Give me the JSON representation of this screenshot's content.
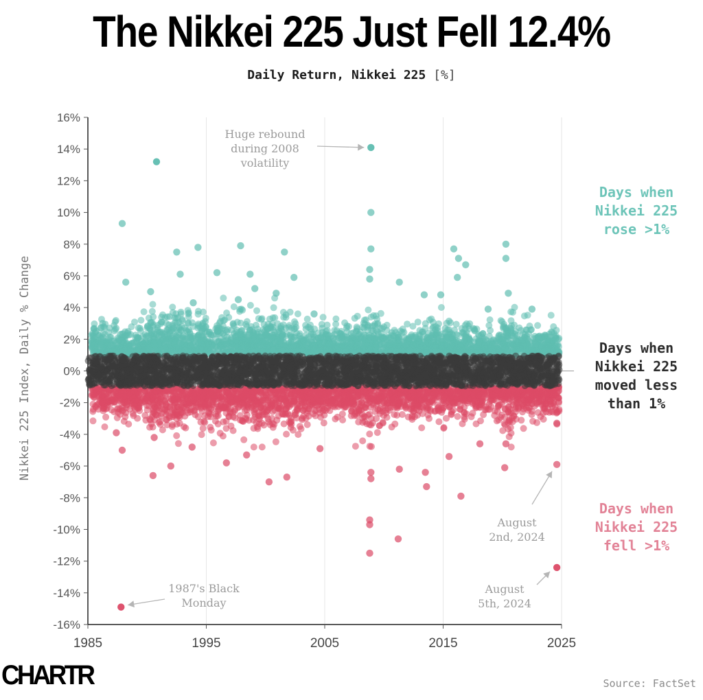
{
  "title": "The Nikkei 225 Just Fell 12.4%",
  "subtitle": "Daily Return, Nikkei 225",
  "subtitle_unit": "[%]",
  "legend": {
    "rose": [
      "Days when",
      "Nikkei 225",
      "rose >1%"
    ],
    "flat": [
      "Days when",
      "Nikkei 225",
      "moved less",
      "than 1%"
    ],
    "fell": [
      "Days when",
      "Nikkei 225",
      "fell >1%"
    ]
  },
  "logo": "CHARTR",
  "source": "Source: FactSet",
  "colors": {
    "rose": "#5fbdb0",
    "flat": "#3a3a3a",
    "fell": "#dc4a66",
    "annotation": "#9a9a9a",
    "grid": "#e6e6e6"
  },
  "chart_data": {
    "type": "scatter",
    "xlabel": "",
    "ylabel": "Nikkei 225 Index, Daily % Change",
    "x_ticks": [
      "1985",
      "1995",
      "2005",
      "2015",
      "2025"
    ],
    "y_ticks": [
      "16%",
      "14%",
      "12%",
      "10%",
      "8%",
      "6%",
      "4%",
      "2%",
      "0%",
      "-2%",
      "-4%",
      "-6%",
      "-8%",
      "-10%",
      "-12%",
      "-14%",
      "-16%"
    ],
    "xlim": [
      1985,
      2025
    ],
    "ylim": [
      -16,
      16
    ],
    "grid": true,
    "series": [
      {
        "category": "rose",
        "points": [
          [
            1990.8,
            13.2
          ],
          [
            2008.9,
            14.1
          ],
          [
            2008.9,
            10.0
          ],
          [
            2008.9,
            7.7
          ],
          [
            1987.9,
            9.3
          ],
          [
            1994.3,
            7.8
          ],
          [
            1992.5,
            7.5
          ],
          [
            1997.9,
            7.9
          ],
          [
            2001.6,
            7.5
          ],
          [
            2020.3,
            8.0
          ],
          [
            2020.3,
            7.1
          ],
          [
            2015.9,
            7.7
          ],
          [
            2016.3,
            7.1
          ],
          [
            2016.9,
            6.7
          ],
          [
            1988.2,
            5.6
          ],
          [
            1990.3,
            5.0
          ],
          [
            1992.8,
            6.1
          ],
          [
            1995.9,
            6.2
          ],
          [
            1998.7,
            6.1
          ],
          [
            2002.4,
            5.9
          ],
          [
            2011.3,
            5.6
          ],
          [
            2016.2,
            5.9
          ],
          [
            2013.4,
            4.8
          ],
          [
            2014.8,
            4.8
          ],
          [
            2008.8,
            6.4
          ],
          [
            2008.8,
            5.8
          ],
          [
            2020.5,
            4.9
          ],
          [
            1999.1,
            5.2
          ],
          [
            1993.9,
            4.3
          ],
          [
            2000.9,
            4.9
          ],
          [
            1997.7,
            4.5
          ],
          [
            2018.8,
            3.9
          ],
          [
            2022.5,
            3.9
          ],
          [
            1985.7,
            2.5
          ],
          [
            2004.1,
            3.6
          ]
        ]
      },
      {
        "category": "fell",
        "points": [
          [
            1987.8,
            -14.9
          ],
          [
            2024.6,
            -12.4
          ],
          [
            2024.6,
            -5.9
          ],
          [
            2008.8,
            -11.5
          ],
          [
            2011.2,
            -10.6
          ],
          [
            2008.8,
            -9.4
          ],
          [
            2008.8,
            -9.7
          ],
          [
            2016.5,
            -7.9
          ],
          [
            2000.3,
            -7.0
          ],
          [
            2001.8,
            -6.7
          ],
          [
            1990.5,
            -6.6
          ],
          [
            2013.6,
            -7.3
          ],
          [
            2011.3,
            -6.2
          ],
          [
            2008.9,
            -6.8
          ],
          [
            2008.9,
            -6.4
          ],
          [
            1992.0,
            -6.0
          ],
          [
            2020.2,
            -6.1
          ],
          [
            1996.7,
            -5.8
          ],
          [
            2013.5,
            -6.4
          ],
          [
            1998.4,
            -5.3
          ],
          [
            2004.6,
            -4.9
          ],
          [
            2015.5,
            -5.4
          ],
          [
            1987.9,
            -5.0
          ],
          [
            1990.6,
            -4.2
          ],
          [
            2020.3,
            -4.6
          ],
          [
            2018.1,
            -4.6
          ],
          [
            1987.4,
            -3.9
          ],
          [
            1993.8,
            -4.8
          ],
          [
            2024.6,
            -3.3
          ]
        ]
      }
    ],
    "annotations": [
      {
        "text": [
          "Huge rebound",
          "during 2008",
          "volatility"
        ],
        "x": 2008.9,
        "y": 14.1
      },
      {
        "text": [
          "1987's Black",
          "Monday"
        ],
        "x": 1987.8,
        "y": -14.9
      },
      {
        "text": [
          "August",
          "2nd, 2024"
        ],
        "x": 2024.6,
        "y": -5.9
      },
      {
        "text": [
          "August",
          "5th, 2024"
        ],
        "x": 2024.6,
        "y": -12.4
      }
    ]
  }
}
